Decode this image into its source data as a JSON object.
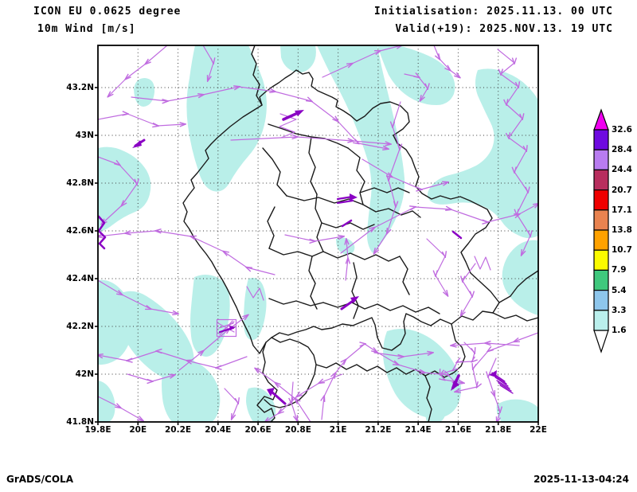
{
  "header": {
    "model": "ICON EU 0.0625 degree",
    "variable": "10m Wind [m/s]",
    "initialisation": "Initialisation: 2025.11.13. 00 UTC",
    "valid": "Valid(+19): 2025.NOV.13. 19 UTC"
  },
  "footer": {
    "left": "GrADS/COLA",
    "right": "2025-11-13-04:24"
  },
  "map": {
    "x_tick_labels": [
      "19.8E",
      "20E",
      "20.2E",
      "20.4E",
      "20.6E",
      "20.8E",
      "21E",
      "21.2E",
      "21.4E",
      "21.6E",
      "21.8E",
      "22E"
    ],
    "y_tick_labels": [
      "43.2N",
      "43N",
      "42.8N",
      "42.6N",
      "42.4N",
      "42.2N",
      "42N",
      "41.8N"
    ]
  },
  "colorbar": {
    "levels_top_to_bottom": [
      "32.6",
      "28.4",
      "24.4",
      "20.7",
      "17.1",
      "13.8",
      "10.7",
      "7.9",
      "5.4",
      "3.3",
      "1.6"
    ],
    "segment_colors_top_to_bottom": [
      "#6e0ae0",
      "#b87cf0",
      "#b82e5e",
      "#f00000",
      "#e98350",
      "#ffa200",
      "#fbfb00",
      "#3fc87d",
      "#8ec6ec",
      "#baefec"
    ],
    "above_max_color": "#f000f0",
    "below_min_color": "#ffffff"
  },
  "colors": {
    "shade_low_wind": "#b9efe9",
    "wind_streamline": "#c06ce0",
    "wind_bold": "#8a00c4",
    "border": "#1a1a1a"
  },
  "chart_data": {
    "type": "map",
    "title": "10m Wind [m/s] — ICON EU 0.0625 degree",
    "region": "Kosovo and surroundings",
    "lon_ticks_deg_east": [
      19.8,
      20.0,
      20.2,
      20.4,
      20.6,
      20.8,
      21.0,
      21.2,
      21.4,
      21.6,
      21.8,
      22.0
    ],
    "lat_ticks_deg_north": [
      41.8,
      42.0,
      42.2,
      42.4,
      42.6,
      42.8,
      43.0,
      43.2
    ],
    "shading_legend_bounds_ms": [
      1.6,
      3.3,
      5.4,
      7.9,
      10.7,
      13.8,
      17.1,
      20.7,
      24.4,
      28.4,
      32.6
    ],
    "shaded_regions_value": "1.6-3.3 m/s (pale cyan patches)",
    "overlay": "wind streamlines with arrowheads (magenta), stronger vectors bold purple",
    "grid": true,
    "legend_position": "right vertical color bar"
  }
}
